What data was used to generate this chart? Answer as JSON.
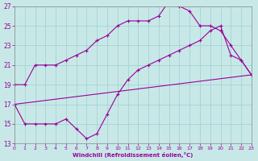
{
  "xlabel": "Windchill (Refroidissement éolien,°C)",
  "xlim": [
    0,
    23
  ],
  "ylim": [
    13,
    27
  ],
  "xticks": [
    0,
    1,
    2,
    3,
    4,
    5,
    6,
    7,
    8,
    9,
    10,
    11,
    12,
    13,
    14,
    15,
    16,
    17,
    18,
    19,
    20,
    21,
    22,
    23
  ],
  "yticks": [
    13,
    15,
    17,
    19,
    21,
    23,
    25,
    27
  ],
  "bg_color": "#c8e8e8",
  "grid_color": "#9ecece",
  "line_color": "#990099",
  "line1_x": [
    0,
    1,
    2,
    3,
    4,
    5,
    6,
    7,
    8,
    9,
    10,
    11,
    12,
    13,
    14,
    15,
    16,
    17,
    18,
    19,
    20,
    21,
    22,
    23
  ],
  "line1_y": [
    19.0,
    19.0,
    21.0,
    21.0,
    21.0,
    21.5,
    22.0,
    22.5,
    23.5,
    24.0,
    25.0,
    25.5,
    25.5,
    25.5,
    26.0,
    27.5,
    27.0,
    26.5,
    25.0,
    25.0,
    24.5,
    23.0,
    21.5,
    20.0
  ],
  "line2_x": [
    0,
    1,
    2,
    3,
    4,
    5,
    6,
    7,
    8,
    9,
    10,
    11,
    12,
    13,
    14,
    15,
    16,
    17,
    18,
    19,
    20,
    21,
    22,
    23
  ],
  "line2_y": [
    17.0,
    15.0,
    15.0,
    15.0,
    15.0,
    15.5,
    14.5,
    13.5,
    14.0,
    16.0,
    18.0,
    19.5,
    20.5,
    21.0,
    21.5,
    22.0,
    22.5,
    23.0,
    23.5,
    24.5,
    25.0,
    22.0,
    21.5,
    20.0
  ],
  "line3_x": [
    0,
    23
  ],
  "line3_y": [
    17.0,
    20.0
  ]
}
